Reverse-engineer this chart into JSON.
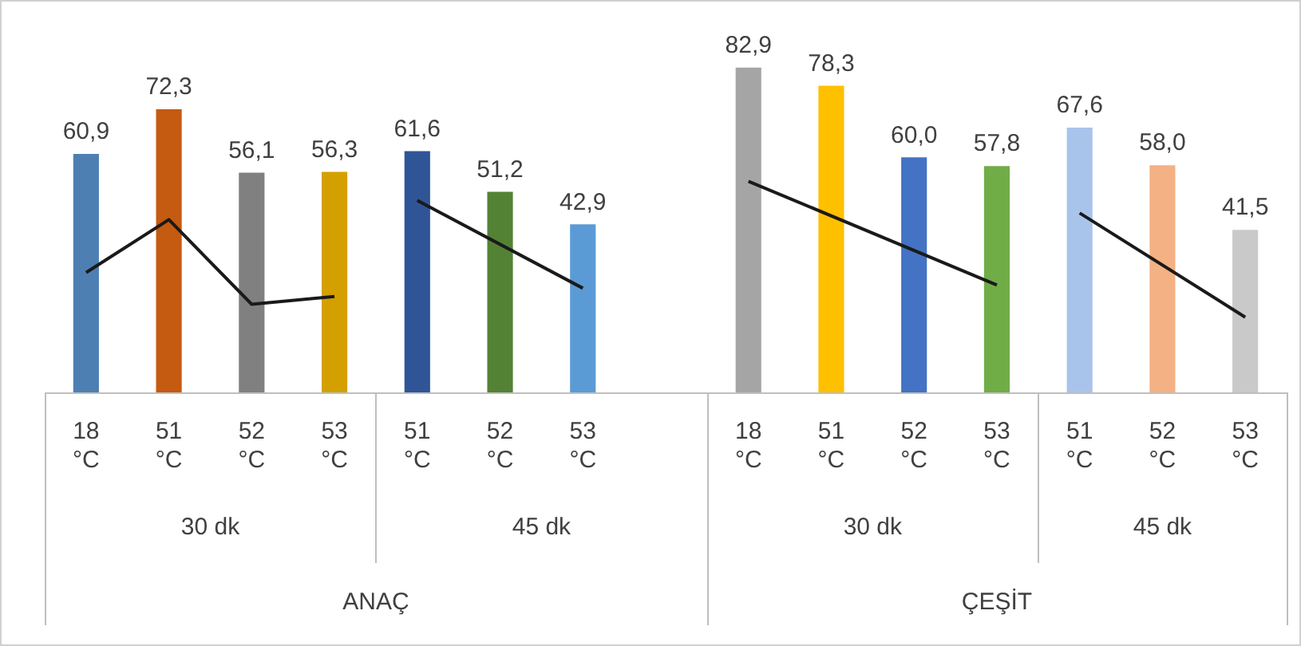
{
  "chart_data": {
    "type": "bar",
    "categories": [
      "18 °C",
      "51 °C",
      "52 °C",
      "53 °C",
      "51 °C",
      "52 °C",
      "53 °C",
      null,
      "18 °C",
      "51 °C",
      "52 °C",
      "53 °C",
      "51 °C",
      "52 °C",
      "53 °C"
    ],
    "series": [
      {
        "colors": [
          "#4e7fb3",
          "#c55a11",
          "#808080",
          "#d4a000",
          "#2f5597",
          "#548235",
          "#5b9bd5",
          null,
          "#a5a5a5",
          "#ffc000",
          "#4472c4",
          "#70ad47",
          "#a9c4eb",
          "#f4b183",
          "#c9c9c9"
        ],
        "values": [
          60.9,
          72.3,
          56.1,
          56.3,
          61.6,
          51.2,
          42.9,
          null,
          82.9,
          78.3,
          60.0,
          57.8,
          67.6,
          58.0,
          41.5
        ],
        "value_labels": [
          "60,9",
          "72,3",
          "56,1",
          "56,3",
          "61,6",
          "51,2",
          "42,9",
          null,
          "82,9",
          "78,3",
          "60,0",
          "57,8",
          "67,6",
          "58,0",
          "41,5"
        ]
      },
      {
        "type": "line",
        "color": "#1a1a1a",
        "values": [
          30.6,
          44.1,
          22.5,
          24.5,
          null,
          null,
          null,
          null,
          null,
          null,
          null,
          null,
          null,
          null,
          null
        ]
      },
      {
        "type": "line",
        "color": "#1a1a1a",
        "values": [
          null,
          null,
          null,
          null,
          49.0,
          null,
          26.6,
          null,
          null,
          null,
          null,
          null,
          null,
          null,
          null
        ]
      },
      {
        "type": "line",
        "color": "#1a1a1a",
        "values": [
          null,
          null,
          null,
          null,
          null,
          null,
          null,
          null,
          53.9,
          null,
          null,
          27.4,
          null,
          null,
          null
        ]
      },
      {
        "type": "line",
        "color": "#1a1a1a",
        "values": [
          null,
          null,
          null,
          null,
          null,
          null,
          null,
          null,
          null,
          null,
          null,
          null,
          45.8,
          null,
          19.2
        ]
      }
    ],
    "annotations": [
      "30 dk",
      "45 dk",
      "30 dk",
      "45 dk",
      "ANAÇ",
      "ÇEŞİT"
    ],
    "tick_labels": "x",
    "grid": false,
    "legend": false
  }
}
